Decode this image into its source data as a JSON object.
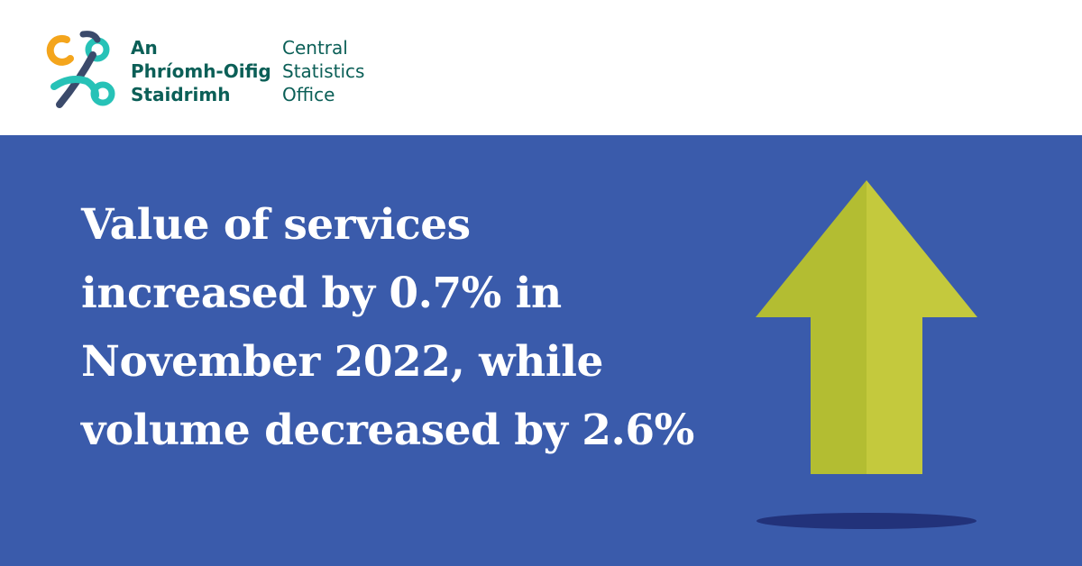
{
  "logo": {
    "icon": "cso-logo-icon",
    "irish_name_lines": [
      "An",
      "Phríomh-Oifig",
      "Staidrimh"
    ],
    "english_name_lines": [
      "Central",
      "Statistics",
      "Office"
    ],
    "colors": {
      "orange": "#f4a51c",
      "teal": "#27c2b7",
      "navy": "#3b4a6b",
      "text": "#0b5f57"
    }
  },
  "headline_lines": [
    "Value of services",
    "increased by 0.7% in",
    "November 2022, while",
    "volume decreased by 2.6%"
  ],
  "graphic": {
    "icon": "up-arrow-icon",
    "colors": {
      "arrow_left": "#b3bd32",
      "arrow_right": "#c4c93d",
      "shadow": "#22327a",
      "background": "#3a5bab"
    }
  }
}
